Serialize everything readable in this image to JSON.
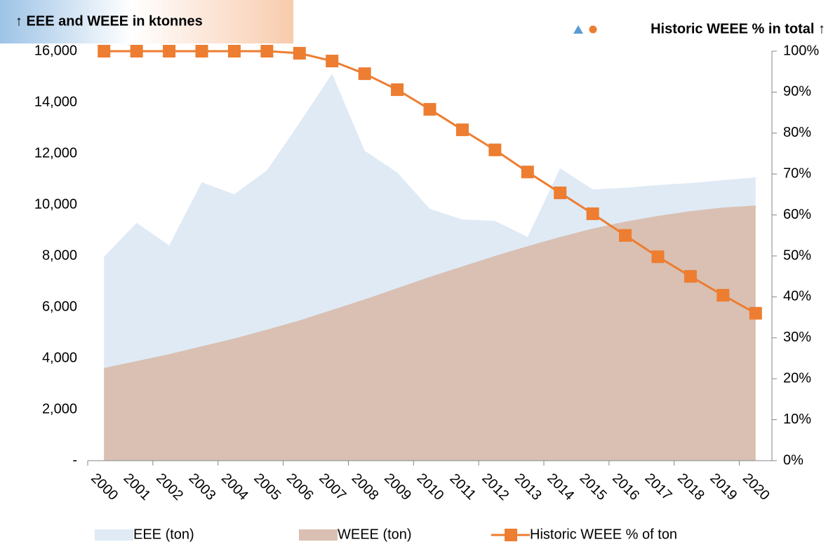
{
  "chart_data": {
    "type": "area_line",
    "title": "↑ EEE and WEEE in ktonnes",
    "y2_title": "Historic WEEE % in total ↑",
    "categories": [
      "2000",
      "2001",
      "2002",
      "2003",
      "2004",
      "2005",
      "2006",
      "2007",
      "2008",
      "2009",
      "2010",
      "2011",
      "2012",
      "2013",
      "2014",
      "2015",
      "2016",
      "2017",
      "2018",
      "2019",
      "2020"
    ],
    "series": [
      {
        "name": "EEE (ton)",
        "color": "#dfeaf5",
        "kind": "area",
        "values": [
          7970,
          9290,
          8410,
          10880,
          10410,
          11340,
          13200,
          15120,
          12110,
          11260,
          9840,
          9420,
          9370,
          8740,
          11420,
          10600,
          10660,
          10770,
          10850,
          10960,
          11070
        ]
      },
      {
        "name": "WEEE (ton)",
        "color": "#d9c0b2",
        "kind": "area",
        "values": [
          3620,
          3890,
          4160,
          4470,
          4770,
          5120,
          5480,
          5890,
          6300,
          6740,
          7180,
          7590,
          8000,
          8380,
          8740,
          9070,
          9340,
          9560,
          9750,
          9890,
          9970
        ]
      },
      {
        "name": "Historic WEEE % of ton",
        "color": "#ed7d31",
        "kind": "line",
        "axis": "y2",
        "values": [
          100,
          100,
          100,
          100,
          100,
          100,
          99.5,
          97.6,
          94.5,
          90.6,
          85.8,
          80.8,
          75.9,
          70.5,
          65.4,
          60.3,
          55.0,
          49.8,
          45.0,
          40.4,
          36.0
        ]
      }
    ],
    "ylim": [
      0,
      16000
    ],
    "yticks": [
      {
        "value": 0,
        "label": "-"
      },
      {
        "value": 2000,
        "label": "2,000"
      },
      {
        "value": 4000,
        "label": "4,000"
      },
      {
        "value": 6000,
        "label": "6,000"
      },
      {
        "value": 8000,
        "label": "8,000"
      },
      {
        "value": 10000,
        "label": "10,000"
      },
      {
        "value": 12000,
        "label": "12,000"
      },
      {
        "value": 14000,
        "label": "14,000"
      },
      {
        "value": 16000,
        "label": "16,000"
      }
    ],
    "y2lim": [
      0,
      100
    ],
    "y2ticks": [
      {
        "value": 0,
        "label": "0%"
      },
      {
        "value": 10,
        "label": "10%"
      },
      {
        "value": 20,
        "label": "20%"
      },
      {
        "value": 30,
        "label": "30%"
      },
      {
        "value": 40,
        "label": "40%"
      },
      {
        "value": 50,
        "label": "50%"
      },
      {
        "value": 60,
        "label": "60%"
      },
      {
        "value": 70,
        "label": "70%"
      },
      {
        "value": 80,
        "label": "80%"
      },
      {
        "value": 90,
        "label": "90%"
      },
      {
        "value": 100,
        "label": "100%"
      }
    ],
    "grid": false,
    "legend": "bottom"
  }
}
